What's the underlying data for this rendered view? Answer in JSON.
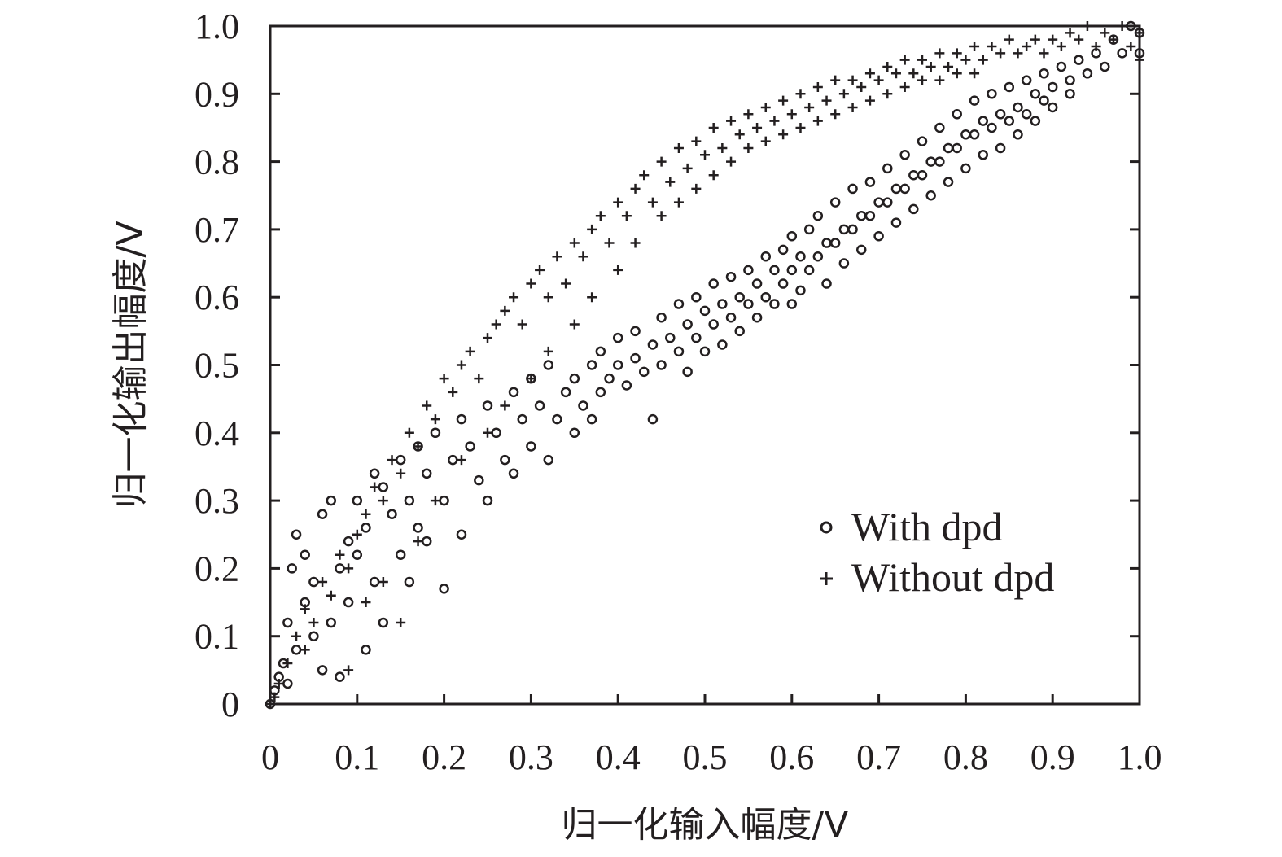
{
  "chart_data": {
    "type": "scatter",
    "title": "",
    "xlabel": "归一化输入幅度/V",
    "ylabel": "归一化输出幅度/V",
    "xlim": [
      0,
      1.0
    ],
    "ylim": [
      0,
      1.0
    ],
    "xticks": [
      "0",
      "0.1",
      "0.2",
      "0.3",
      "0.4",
      "0.5",
      "0.6",
      "0.7",
      "0.8",
      "0.9",
      "1.0"
    ],
    "yticks": [
      "0",
      "0.1",
      "0.2",
      "0.3",
      "0.4",
      "0.5",
      "0.6",
      "0.7",
      "0.8",
      "0.9",
      "1.0"
    ],
    "grid": false,
    "legend_position": "lower-right",
    "colors": {
      "ink": "#231f20"
    },
    "series": [
      {
        "name": "With dpd",
        "marker": "circle",
        "points": [
          [
            0.0,
            0.0
          ],
          [
            0.005,
            0.02
          ],
          [
            0.01,
            0.04
          ],
          [
            0.015,
            0.06
          ],
          [
            0.02,
            0.03
          ],
          [
            0.02,
            0.12
          ],
          [
            0.025,
            0.2
          ],
          [
            0.03,
            0.08
          ],
          [
            0.03,
            0.25
          ],
          [
            0.04,
            0.15
          ],
          [
            0.04,
            0.22
          ],
          [
            0.05,
            0.1
          ],
          [
            0.05,
            0.18
          ],
          [
            0.06,
            0.05
          ],
          [
            0.06,
            0.28
          ],
          [
            0.07,
            0.12
          ],
          [
            0.07,
            0.3
          ],
          [
            0.08,
            0.2
          ],
          [
            0.08,
            0.04
          ],
          [
            0.09,
            0.15
          ],
          [
            0.09,
            0.24
          ],
          [
            0.1,
            0.22
          ],
          [
            0.1,
            0.3
          ],
          [
            0.11,
            0.08
          ],
          [
            0.11,
            0.26
          ],
          [
            0.12,
            0.34
          ],
          [
            0.12,
            0.18
          ],
          [
            0.13,
            0.32
          ],
          [
            0.13,
            0.12
          ],
          [
            0.14,
            0.28
          ],
          [
            0.15,
            0.36
          ],
          [
            0.15,
            0.22
          ],
          [
            0.16,
            0.3
          ],
          [
            0.16,
            0.18
          ],
          [
            0.17,
            0.38
          ],
          [
            0.17,
            0.26
          ],
          [
            0.18,
            0.34
          ],
          [
            0.18,
            0.24
          ],
          [
            0.19,
            0.4
          ],
          [
            0.2,
            0.3
          ],
          [
            0.2,
            0.17
          ],
          [
            0.21,
            0.36
          ],
          [
            0.22,
            0.42
          ],
          [
            0.22,
            0.25
          ],
          [
            0.23,
            0.38
          ],
          [
            0.24,
            0.33
          ],
          [
            0.25,
            0.44
          ],
          [
            0.25,
            0.3
          ],
          [
            0.26,
            0.4
          ],
          [
            0.27,
            0.36
          ],
          [
            0.28,
            0.46
          ],
          [
            0.28,
            0.34
          ],
          [
            0.29,
            0.42
          ],
          [
            0.3,
            0.48
          ],
          [
            0.3,
            0.38
          ],
          [
            0.31,
            0.44
          ],
          [
            0.32,
            0.36
          ],
          [
            0.32,
            0.5
          ],
          [
            0.33,
            0.42
          ],
          [
            0.34,
            0.46
          ],
          [
            0.35,
            0.4
          ],
          [
            0.35,
            0.48
          ],
          [
            0.36,
            0.44
          ],
          [
            0.37,
            0.5
          ],
          [
            0.37,
            0.42
          ],
          [
            0.38,
            0.52
          ],
          [
            0.38,
            0.46
          ],
          [
            0.39,
            0.48
          ],
          [
            0.4,
            0.54
          ],
          [
            0.4,
            0.5
          ],
          [
            0.41,
            0.47
          ],
          [
            0.42,
            0.55
          ],
          [
            0.42,
            0.51
          ],
          [
            0.43,
            0.49
          ],
          [
            0.44,
            0.42
          ],
          [
            0.44,
            0.53
          ],
          [
            0.45,
            0.57
          ],
          [
            0.45,
            0.5
          ],
          [
            0.46,
            0.54
          ],
          [
            0.47,
            0.59
          ],
          [
            0.47,
            0.52
          ],
          [
            0.48,
            0.56
          ],
          [
            0.48,
            0.49
          ],
          [
            0.49,
            0.6
          ],
          [
            0.49,
            0.54
          ],
          [
            0.5,
            0.58
          ],
          [
            0.5,
            0.52
          ],
          [
            0.51,
            0.62
          ],
          [
            0.51,
            0.56
          ],
          [
            0.52,
            0.59
          ],
          [
            0.52,
            0.53
          ],
          [
            0.53,
            0.63
          ],
          [
            0.53,
            0.57
          ],
          [
            0.54,
            0.6
          ],
          [
            0.54,
            0.55
          ],
          [
            0.55,
            0.64
          ],
          [
            0.55,
            0.59
          ],
          [
            0.56,
            0.62
          ],
          [
            0.56,
            0.57
          ],
          [
            0.57,
            0.66
          ],
          [
            0.57,
            0.6
          ],
          [
            0.58,
            0.64
          ],
          [
            0.58,
            0.59
          ],
          [
            0.59,
            0.67
          ],
          [
            0.59,
            0.62
          ],
          [
            0.6,
            0.69
          ],
          [
            0.6,
            0.64
          ],
          [
            0.6,
            0.59
          ],
          [
            0.61,
            0.66
          ],
          [
            0.61,
            0.61
          ],
          [
            0.62,
            0.7
          ],
          [
            0.62,
            0.64
          ],
          [
            0.63,
            0.72
          ],
          [
            0.63,
            0.66
          ],
          [
            0.64,
            0.68
          ],
          [
            0.64,
            0.62
          ],
          [
            0.65,
            0.74
          ],
          [
            0.65,
            0.68
          ],
          [
            0.66,
            0.7
          ],
          [
            0.66,
            0.65
          ],
          [
            0.67,
            0.76
          ],
          [
            0.67,
            0.7
          ],
          [
            0.68,
            0.72
          ],
          [
            0.68,
            0.67
          ],
          [
            0.69,
            0.77
          ],
          [
            0.69,
            0.72
          ],
          [
            0.7,
            0.74
          ],
          [
            0.7,
            0.69
          ],
          [
            0.71,
            0.79
          ],
          [
            0.71,
            0.74
          ],
          [
            0.72,
            0.76
          ],
          [
            0.72,
            0.71
          ],
          [
            0.73,
            0.81
          ],
          [
            0.73,
            0.76
          ],
          [
            0.74,
            0.78
          ],
          [
            0.74,
            0.73
          ],
          [
            0.75,
            0.83
          ],
          [
            0.75,
            0.78
          ],
          [
            0.76,
            0.8
          ],
          [
            0.76,
            0.75
          ],
          [
            0.77,
            0.85
          ],
          [
            0.77,
            0.8
          ],
          [
            0.78,
            0.82
          ],
          [
            0.78,
            0.77
          ],
          [
            0.79,
            0.87
          ],
          [
            0.79,
            0.82
          ],
          [
            0.8,
            0.84
          ],
          [
            0.8,
            0.79
          ],
          [
            0.81,
            0.89
          ],
          [
            0.81,
            0.84
          ],
          [
            0.82,
            0.86
          ],
          [
            0.82,
            0.81
          ],
          [
            0.83,
            0.9
          ],
          [
            0.83,
            0.85
          ],
          [
            0.84,
            0.87
          ],
          [
            0.84,
            0.82
          ],
          [
            0.85,
            0.91
          ],
          [
            0.85,
            0.86
          ],
          [
            0.86,
            0.88
          ],
          [
            0.86,
            0.84
          ],
          [
            0.87,
            0.92
          ],
          [
            0.87,
            0.87
          ],
          [
            0.88,
            0.9
          ],
          [
            0.88,
            0.86
          ],
          [
            0.89,
            0.93
          ],
          [
            0.89,
            0.89
          ],
          [
            0.9,
            0.91
          ],
          [
            0.9,
            0.88
          ],
          [
            0.91,
            0.94
          ],
          [
            0.92,
            0.92
          ],
          [
            0.92,
            0.9
          ],
          [
            0.93,
            0.95
          ],
          [
            0.94,
            0.93
          ],
          [
            0.95,
            0.96
          ],
          [
            0.96,
            0.94
          ],
          [
            0.97,
            0.98
          ],
          [
            0.98,
            0.96
          ],
          [
            0.99,
            1.0
          ],
          [
            1.0,
            0.96
          ],
          [
            1.0,
            0.99
          ]
        ]
      },
      {
        "name": "Without dpd",
        "marker": "plus",
        "points": [
          [
            0.0,
            0.0
          ],
          [
            0.005,
            0.01
          ],
          [
            0.01,
            0.03
          ],
          [
            0.02,
            0.06
          ],
          [
            0.03,
            0.1
          ],
          [
            0.04,
            0.08
          ],
          [
            0.04,
            0.14
          ],
          [
            0.05,
            0.12
          ],
          [
            0.06,
            0.18
          ],
          [
            0.07,
            0.16
          ],
          [
            0.08,
            0.22
          ],
          [
            0.09,
            0.2
          ],
          [
            0.09,
            0.05
          ],
          [
            0.1,
            0.25
          ],
          [
            0.11,
            0.28
          ],
          [
            0.11,
            0.15
          ],
          [
            0.12,
            0.32
          ],
          [
            0.13,
            0.3
          ],
          [
            0.13,
            0.18
          ],
          [
            0.14,
            0.36
          ],
          [
            0.15,
            0.34
          ],
          [
            0.15,
            0.12
          ],
          [
            0.16,
            0.4
          ],
          [
            0.17,
            0.38
          ],
          [
            0.17,
            0.24
          ],
          [
            0.18,
            0.44
          ],
          [
            0.19,
            0.42
          ],
          [
            0.19,
            0.3
          ],
          [
            0.2,
            0.48
          ],
          [
            0.21,
            0.46
          ],
          [
            0.22,
            0.5
          ],
          [
            0.22,
            0.36
          ],
          [
            0.23,
            0.52
          ],
          [
            0.24,
            0.48
          ],
          [
            0.25,
            0.54
          ],
          [
            0.25,
            0.4
          ],
          [
            0.26,
            0.56
          ],
          [
            0.27,
            0.58
          ],
          [
            0.27,
            0.44
          ],
          [
            0.28,
            0.6
          ],
          [
            0.29,
            0.56
          ],
          [
            0.3,
            0.62
          ],
          [
            0.3,
            0.48
          ],
          [
            0.31,
            0.64
          ],
          [
            0.32,
            0.6
          ],
          [
            0.32,
            0.52
          ],
          [
            0.33,
            0.66
          ],
          [
            0.34,
            0.62
          ],
          [
            0.35,
            0.68
          ],
          [
            0.35,
            0.56
          ],
          [
            0.36,
            0.66
          ],
          [
            0.37,
            0.7
          ],
          [
            0.37,
            0.6
          ],
          [
            0.38,
            0.72
          ],
          [
            0.39,
            0.68
          ],
          [
            0.4,
            0.74
          ],
          [
            0.4,
            0.64
          ],
          [
            0.41,
            0.72
          ],
          [
            0.42,
            0.76
          ],
          [
            0.42,
            0.68
          ],
          [
            0.43,
            0.78
          ],
          [
            0.44,
            0.74
          ],
          [
            0.45,
            0.8
          ],
          [
            0.45,
            0.72
          ],
          [
            0.46,
            0.77
          ],
          [
            0.47,
            0.82
          ],
          [
            0.47,
            0.74
          ],
          [
            0.48,
            0.79
          ],
          [
            0.49,
            0.83
          ],
          [
            0.49,
            0.76
          ],
          [
            0.5,
            0.81
          ],
          [
            0.51,
            0.85
          ],
          [
            0.51,
            0.78
          ],
          [
            0.52,
            0.82
          ],
          [
            0.53,
            0.86
          ],
          [
            0.53,
            0.8
          ],
          [
            0.54,
            0.84
          ],
          [
            0.55,
            0.87
          ],
          [
            0.55,
            0.82
          ],
          [
            0.56,
            0.85
          ],
          [
            0.57,
            0.88
          ],
          [
            0.57,
            0.83
          ],
          [
            0.58,
            0.86
          ],
          [
            0.59,
            0.89
          ],
          [
            0.59,
            0.84
          ],
          [
            0.6,
            0.87
          ],
          [
            0.61,
            0.9
          ],
          [
            0.61,
            0.85
          ],
          [
            0.62,
            0.88
          ],
          [
            0.63,
            0.91
          ],
          [
            0.63,
            0.86
          ],
          [
            0.64,
            0.89
          ],
          [
            0.65,
            0.92
          ],
          [
            0.65,
            0.87
          ],
          [
            0.66,
            0.9
          ],
          [
            0.67,
            0.92
          ],
          [
            0.67,
            0.88
          ],
          [
            0.68,
            0.91
          ],
          [
            0.69,
            0.93
          ],
          [
            0.69,
            0.89
          ],
          [
            0.7,
            0.92
          ],
          [
            0.71,
            0.94
          ],
          [
            0.71,
            0.9
          ],
          [
            0.72,
            0.93
          ],
          [
            0.73,
            0.95
          ],
          [
            0.73,
            0.91
          ],
          [
            0.74,
            0.93
          ],
          [
            0.75,
            0.95
          ],
          [
            0.75,
            0.92
          ],
          [
            0.76,
            0.94
          ],
          [
            0.77,
            0.96
          ],
          [
            0.77,
            0.92
          ],
          [
            0.78,
            0.94
          ],
          [
            0.79,
            0.96
          ],
          [
            0.79,
            0.93
          ],
          [
            0.8,
            0.95
          ],
          [
            0.81,
            0.97
          ],
          [
            0.81,
            0.93
          ],
          [
            0.82,
            0.95
          ],
          [
            0.83,
            0.97
          ],
          [
            0.84,
            0.96
          ],
          [
            0.85,
            0.98
          ],
          [
            0.86,
            0.96
          ],
          [
            0.87,
            0.97
          ],
          [
            0.88,
            0.98
          ],
          [
            0.89,
            0.96
          ],
          [
            0.9,
            0.98
          ],
          [
            0.91,
            0.97
          ],
          [
            0.92,
            0.99
          ],
          [
            0.93,
            0.98
          ],
          [
            0.94,
            1.0
          ],
          [
            0.95,
            0.97
          ],
          [
            0.96,
            0.99
          ],
          [
            0.97,
            0.98
          ],
          [
            0.98,
            1.0
          ],
          [
            0.99,
            0.97
          ],
          [
            1.0,
            0.99
          ],
          [
            1.0,
            0.95
          ]
        ]
      }
    ]
  }
}
